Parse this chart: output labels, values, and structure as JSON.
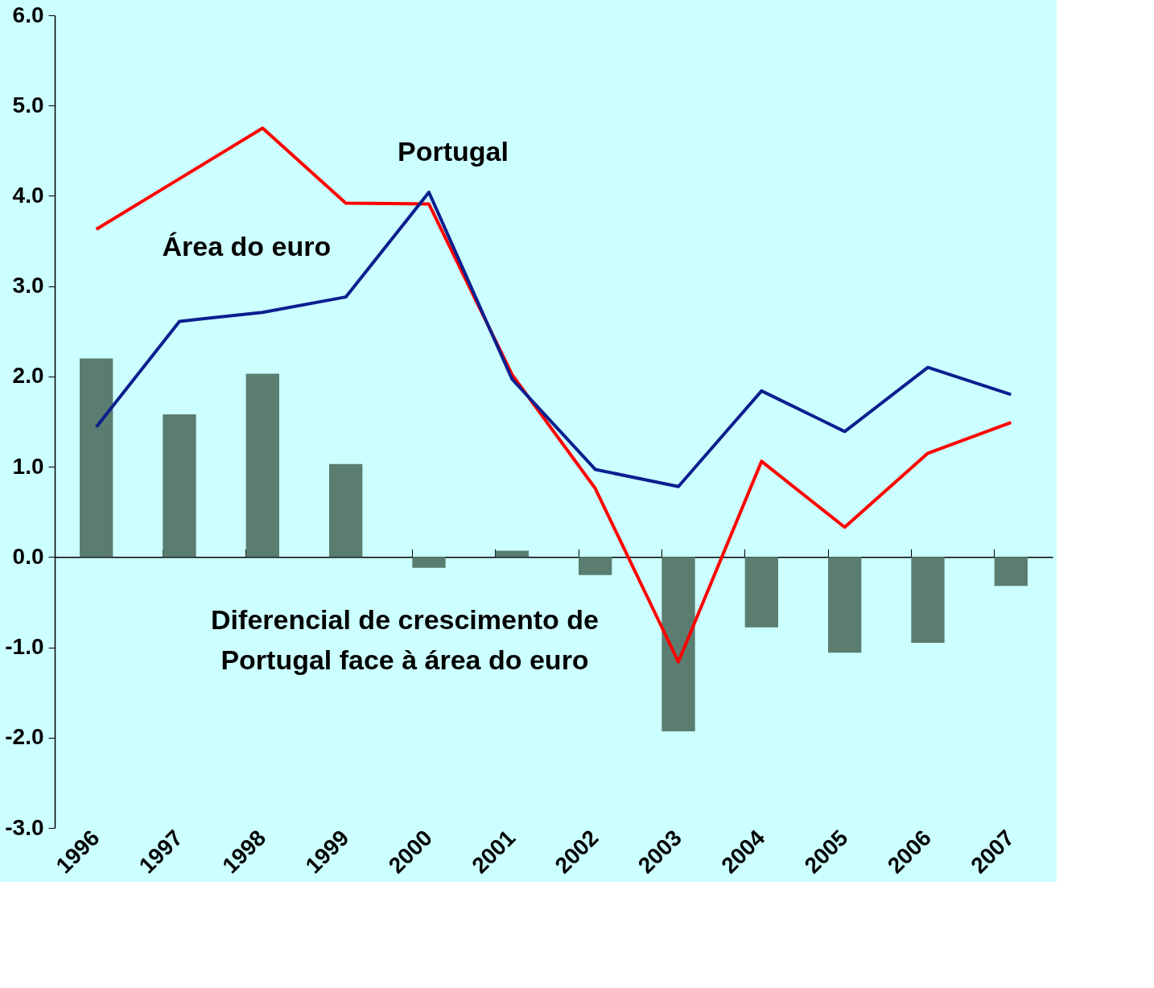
{
  "chart_data": {
    "type": "bar",
    "categories": [
      "1996",
      "1997",
      "1998",
      "1999",
      "2000",
      "2001",
      "2002",
      "2003",
      "2004",
      "2005",
      "2006",
      "2007"
    ],
    "series": [
      {
        "name": "Diferencial de crescimento de Portugal face à área do euro",
        "color": "#5a7d70",
        "values": [
          2.2,
          1.58,
          2.03,
          1.03,
          -0.12,
          0.07,
          -0.2,
          -1.93,
          -0.78,
          -1.06,
          -0.95,
          -0.32
        ]
      },
      {
        "name": "Portugal",
        "type": "line",
        "color": "#ff0000",
        "values": [
          3.63,
          4.19,
          4.75,
          3.92,
          3.91,
          2.02,
          0.76,
          -1.16,
          1.06,
          0.33,
          1.15,
          1.49
        ]
      },
      {
        "name": "Área do euro",
        "type": "line",
        "color": "#0a1f8f",
        "values": [
          1.44,
          2.61,
          2.71,
          2.88,
          4.04,
          1.97,
          0.97,
          0.78,
          1.84,
          1.39,
          2.1,
          1.8
        ]
      }
    ],
    "ylim": [
      -3,
      6
    ],
    "yticks": [
      {
        "value": -3,
        "label": "-3.0"
      },
      {
        "value": -2,
        "label": "-2.0"
      },
      {
        "value": -1,
        "label": "-1.0"
      },
      {
        "value": 0,
        "label": "0.0"
      },
      {
        "value": 1,
        "label": "1.0"
      },
      {
        "value": 2,
        "label": "2.0"
      },
      {
        "value": 3,
        "label": "3.0"
      },
      {
        "value": 4,
        "label": "4.0"
      },
      {
        "value": 5,
        "label": "5.0"
      },
      {
        "value": 6,
        "label": "6.0"
      }
    ],
    "xlabel": null
  }
}
